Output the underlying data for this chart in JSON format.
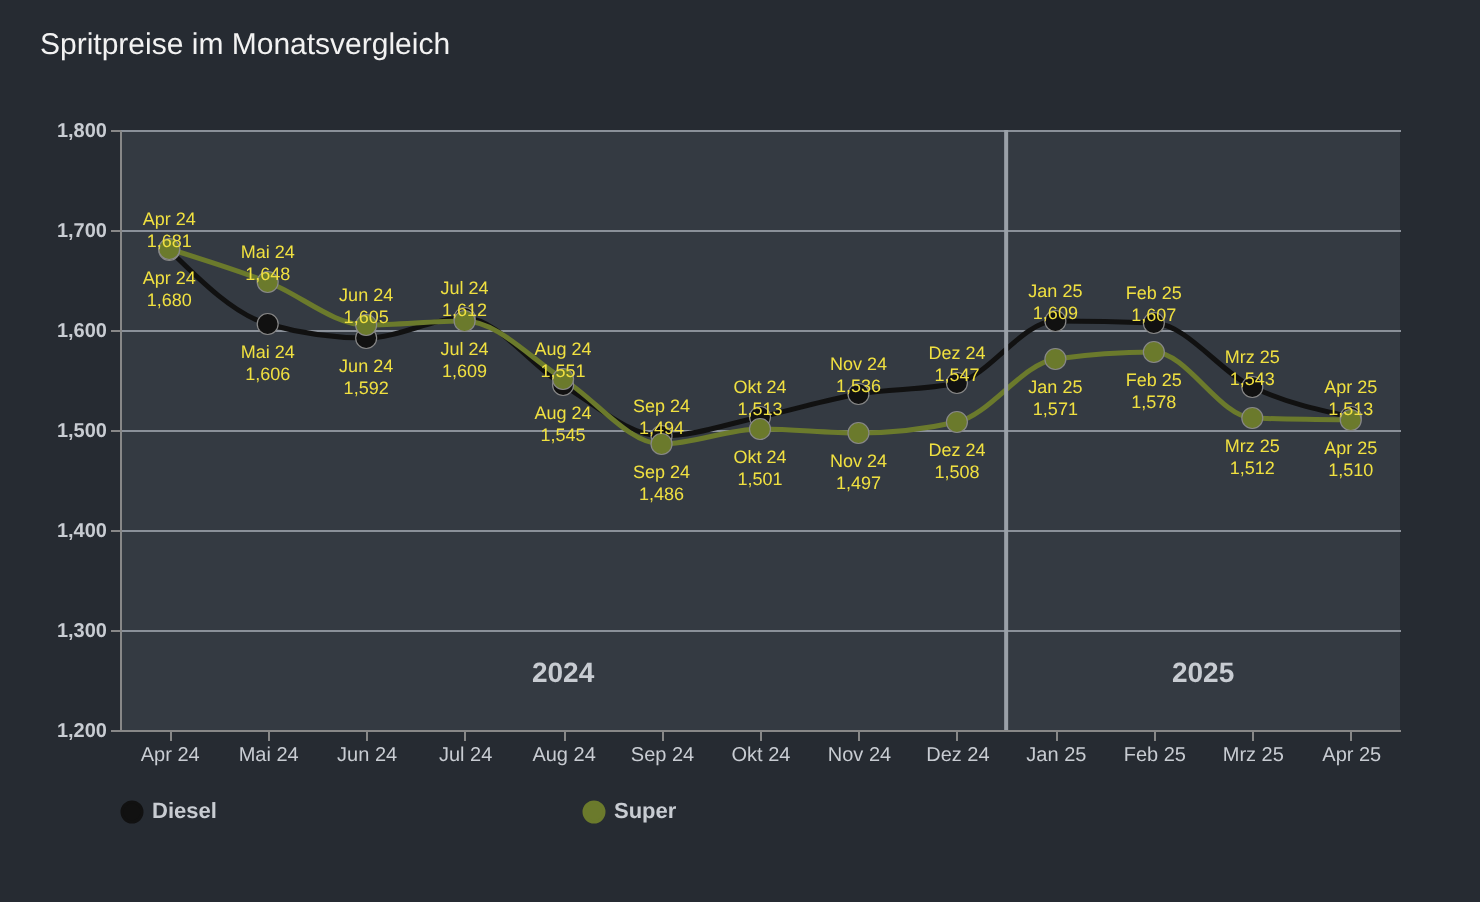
{
  "chart_data": {
    "type": "line",
    "title": "Spritpreise im Monatsvergleich",
    "categories": [
      "Apr 24",
      "Mai 24",
      "Jun 24",
      "Jul 24",
      "Aug 24",
      "Sep 24",
      "Okt 24",
      "Nov 24",
      "Dez 24",
      "Jan 25",
      "Feb 25",
      "Mrz 25",
      "Apr 25"
    ],
    "series": [
      {
        "name": "Diesel",
        "color": "#111111",
        "values": [
          1680,
          1606,
          1592,
          1612,
          1545,
          1494,
          1513,
          1536,
          1547,
          1609,
          1607,
          1543,
          1513
        ],
        "value_labels": [
          "Apr 24\n1,680",
          "Mai 24\n1,606",
          "Jun 24\n1,592",
          "Jul 24\n1,612",
          "Aug 24\n1,545",
          "Sep 24\n1,494",
          "Okt 24\n1,513",
          "Nov 24\n1,536",
          "Dez 24\n1,547",
          "Jan 25\n1,609",
          "Feb 25\n1,607",
          "Mrz 25\n1,543",
          "Apr 25\n1,513"
        ]
      },
      {
        "name": "Super",
        "color": "#6b7a2c",
        "values": [
          1681,
          1648,
          1605,
          1609,
          1551,
          1486,
          1501,
          1497,
          1508,
          1571,
          1578,
          1512,
          1510
        ],
        "value_labels": [
          "Apr 24\n1,681",
          "Mai 24\n1,648",
          "Jun 24\n1,605",
          "Jul 24\n1,609",
          "Aug 24\n1,551",
          "Sep 24\n1,486",
          "Okt 24\n1,501",
          "Nov 24\n1,497",
          "Dez 24\n1,508",
          "Jan 25\n1,571",
          "Feb 25\n1,578",
          "Mrz 25\n1,512",
          "Apr 25\n1,510"
        ]
      }
    ],
    "ylim": [
      1200,
      1800
    ],
    "yticks": [
      {
        "value": 1200,
        "label": "1,200"
      },
      {
        "value": 1300,
        "label": "1,300"
      },
      {
        "value": 1400,
        "label": "1,400"
      },
      {
        "value": 1500,
        "label": "1,500"
      },
      {
        "value": 1600,
        "label": "1,600"
      },
      {
        "value": 1700,
        "label": "1,700"
      },
      {
        "value": 1800,
        "label": "1,800"
      }
    ],
    "grid": "y",
    "legend": "bottom",
    "marker": "circle",
    "line_style": "solid",
    "ref_lines": [
      {
        "axis": "x",
        "value": "Jan 25",
        "color": "#9aa0a8"
      }
    ],
    "annotations": [
      "2024",
      "2025"
    ]
  }
}
